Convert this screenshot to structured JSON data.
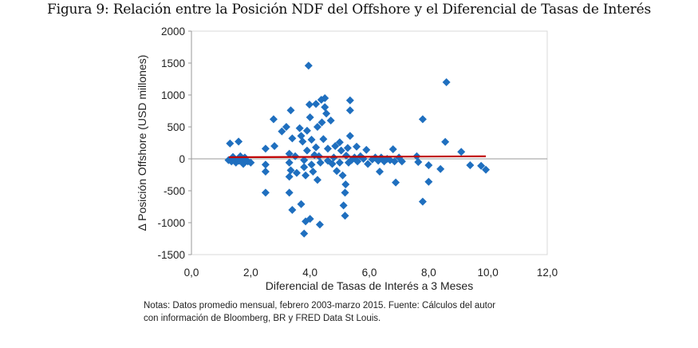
{
  "figure_title": "Figura 9: Relación entre la Posición NDF del Offshore y el Diferencial de Tasas de Interés",
  "notes": {
    "line1": "Notas: Datos promedio mensual, febrero 2003-marzo 2015. Fuente: Cálculos del autor",
    "line2": "con información de Bloomberg, BR y FRED Data St Louis."
  },
  "colors": {
    "points": "#1f6fbf",
    "trend": "#c00000",
    "border": "#d0d0d0",
    "zero_line": "#9a9a9a"
  },
  "chart_data": {
    "type": "scatter",
    "title": "Figura 9: Relación entre la Posición NDF del Offshore y el Diferencial de Tasas de Interés",
    "xlabel": "Diferencial de Tasas de Interés a 3 Meses",
    "ylabel": "Δ Posición Offshore (USD millones)",
    "xlim": [
      0,
      12
    ],
    "ylim": [
      -1500,
      2000
    ],
    "xticks": [
      "0,0",
      "2,0",
      "4,0",
      "6,0",
      "8,0",
      "10,0",
      "12,0"
    ],
    "xtick_values": [
      0,
      2,
      4,
      6,
      8,
      10,
      12
    ],
    "yticks": [
      "2000",
      "1500",
      "1000",
      "500",
      "0",
      "-500",
      "-1000",
      "-1500"
    ],
    "ytick_values": [
      2000,
      1500,
      1000,
      500,
      0,
      -500,
      -1000,
      -1500
    ],
    "grid": false,
    "legend": "none",
    "trendline": {
      "x": [
        1.26,
        9.93
      ],
      "y": [
        25,
        40
      ]
    },
    "series": [
      {
        "name": "Posición Offshore",
        "points": [
          [
            1.3,
            240
          ],
          [
            1.59,
            270
          ],
          [
            1.25,
            -20
          ],
          [
            1.35,
            -40
          ],
          [
            1.45,
            0
          ],
          [
            1.5,
            -60
          ],
          [
            1.6,
            -30
          ],
          [
            1.7,
            10
          ],
          [
            1.75,
            -80
          ],
          [
            1.8,
            20
          ],
          [
            1.9,
            -40
          ],
          [
            2.0,
            -60
          ],
          [
            1.4,
            30
          ],
          [
            1.65,
            40
          ],
          [
            1.85,
            -20
          ],
          [
            2.5,
            160
          ],
          [
            2.5,
            -90
          ],
          [
            2.5,
            -200
          ],
          [
            2.5,
            -530
          ],
          [
            2.77,
            620
          ],
          [
            2.8,
            200
          ],
          [
            3.05,
            430
          ],
          [
            3.2,
            500
          ],
          [
            3.35,
            760
          ],
          [
            3.3,
            80
          ],
          [
            3.3,
            -60
          ],
          [
            3.35,
            -180
          ],
          [
            3.3,
            -280
          ],
          [
            3.3,
            -530
          ],
          [
            3.4,
            -800
          ],
          [
            3.4,
            320
          ],
          [
            3.5,
            40
          ],
          [
            3.55,
            -220
          ],
          [
            3.7,
            -710
          ],
          [
            3.85,
            -980
          ],
          [
            4.0,
            -940
          ],
          [
            3.8,
            -1170
          ],
          [
            4.33,
            -1030
          ],
          [
            3.65,
            480
          ],
          [
            3.7,
            360
          ],
          [
            3.75,
            270
          ],
          [
            3.8,
            -20
          ],
          [
            3.8,
            -130
          ],
          [
            3.85,
            -260
          ],
          [
            3.9,
            130
          ],
          [
            3.9,
            440
          ],
          [
            3.95,
            1460
          ],
          [
            3.98,
            850
          ],
          [
            4.0,
            650
          ],
          [
            4.05,
            300
          ],
          [
            4.05,
            -90
          ],
          [
            4.1,
            -200
          ],
          [
            4.15,
            60
          ],
          [
            4.2,
            860
          ],
          [
            4.2,
            180
          ],
          [
            4.25,
            -330
          ],
          [
            4.25,
            500
          ],
          [
            4.3,
            40
          ],
          [
            4.35,
            -60
          ],
          [
            4.38,
            925
          ],
          [
            4.4,
            570
          ],
          [
            4.45,
            310
          ],
          [
            4.5,
            950
          ],
          [
            4.5,
            810
          ],
          [
            4.55,
            710
          ],
          [
            4.6,
            -30
          ],
          [
            4.6,
            160
          ],
          [
            4.7,
            600
          ],
          [
            4.75,
            -80
          ],
          [
            4.8,
            20
          ],
          [
            4.85,
            200
          ],
          [
            4.9,
            -190
          ],
          [
            5.0,
            260
          ],
          [
            5.0,
            -60
          ],
          [
            5.05,
            130
          ],
          [
            5.1,
            -260
          ],
          [
            5.13,
            -730
          ],
          [
            5.18,
            -890
          ],
          [
            5.18,
            -530
          ],
          [
            5.2,
            -400
          ],
          [
            5.22,
            50
          ],
          [
            5.27,
            170
          ],
          [
            5.3,
            -60
          ],
          [
            5.35,
            915
          ],
          [
            5.35,
            760
          ],
          [
            5.35,
            360
          ],
          [
            5.4,
            -20
          ],
          [
            5.5,
            20
          ],
          [
            5.57,
            190
          ],
          [
            5.6,
            -40
          ],
          [
            5.7,
            40
          ],
          [
            5.8,
            0
          ],
          [
            5.9,
            140
          ],
          [
            5.95,
            -80
          ],
          [
            6.1,
            -10
          ],
          [
            6.2,
            20
          ],
          [
            6.3,
            -30
          ],
          [
            6.35,
            -200
          ],
          [
            6.4,
            20
          ],
          [
            6.5,
            -40
          ],
          [
            6.6,
            0
          ],
          [
            6.7,
            -20
          ],
          [
            6.8,
            150
          ],
          [
            6.85,
            -40
          ],
          [
            6.89,
            -370
          ],
          [
            7.0,
            20
          ],
          [
            7.1,
            -40
          ],
          [
            7.6,
            40
          ],
          [
            7.65,
            -50
          ],
          [
            7.8,
            620
          ],
          [
            7.8,
            -670
          ],
          [
            8.0,
            -100
          ],
          [
            8.0,
            -360
          ],
          [
            8.4,
            -160
          ],
          [
            8.56,
            265
          ],
          [
            8.6,
            1200
          ],
          [
            9.1,
            110
          ],
          [
            9.4,
            -100
          ],
          [
            9.77,
            -110
          ],
          [
            9.93,
            -170
          ]
        ]
      }
    ]
  }
}
